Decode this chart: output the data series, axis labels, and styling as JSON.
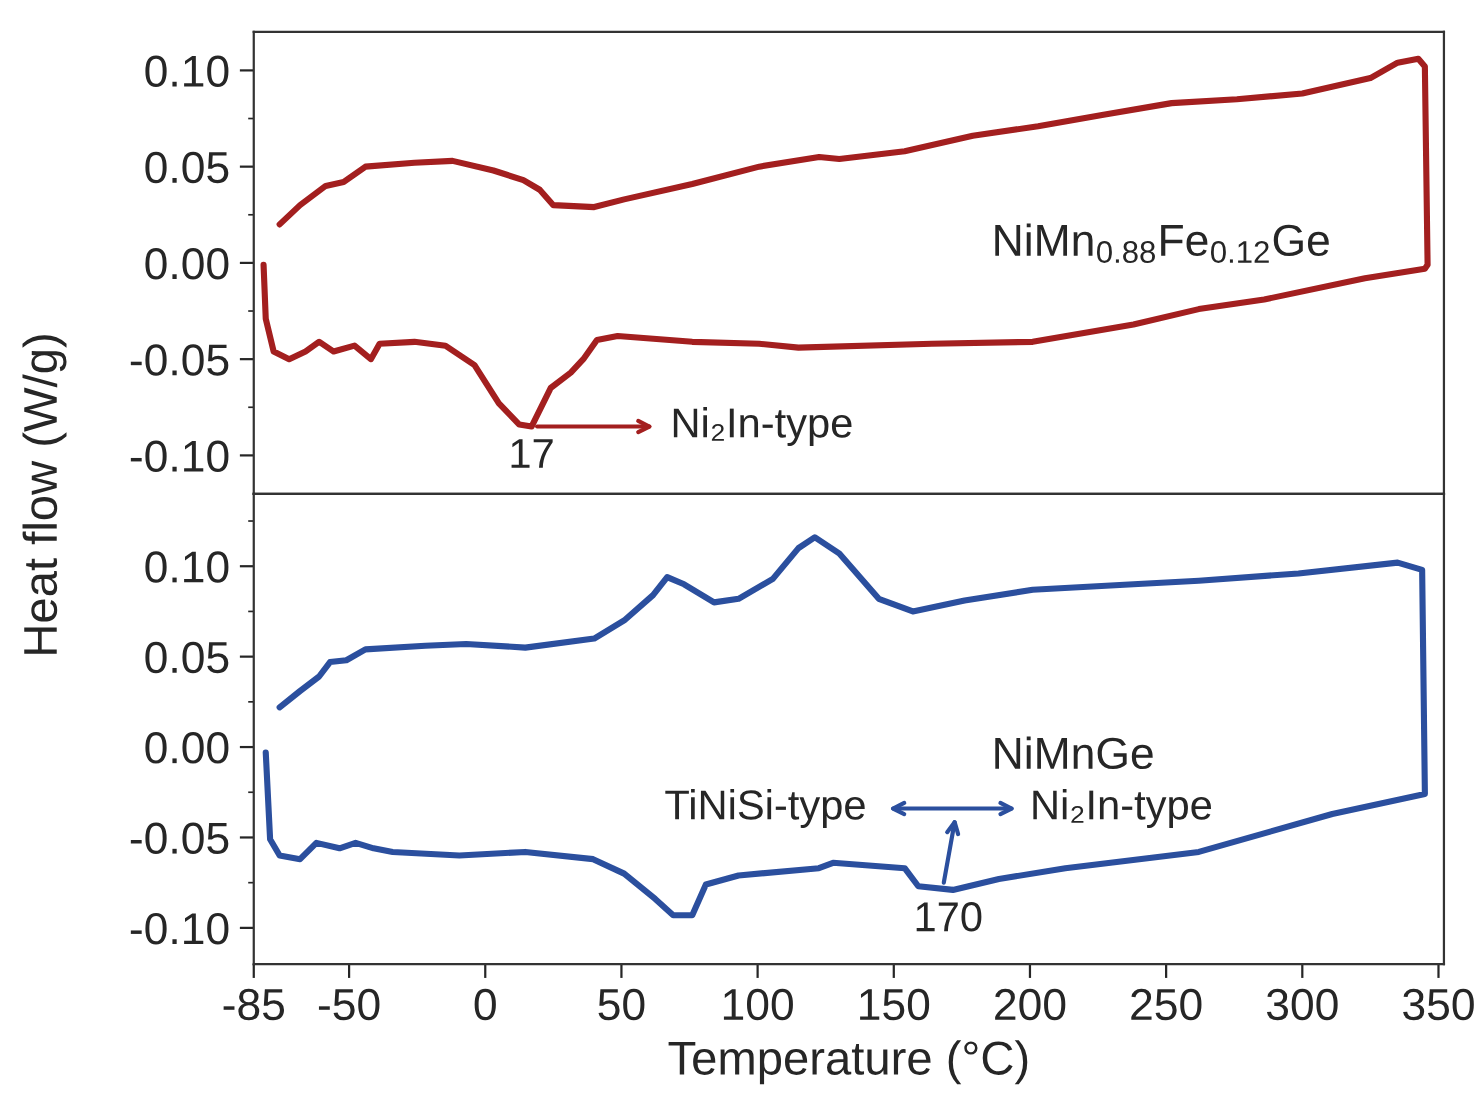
{
  "chart_data": [
    {
      "type": "line",
      "ylabel": "Heat flow (W/g)",
      "xlim": [
        -85,
        352
      ],
      "ylim": [
        -0.12,
        0.12
      ],
      "yticks": [
        {
          "value": -0.1,
          "label": "-0.10"
        },
        {
          "value": -0.05,
          "label": "-0.05"
        },
        {
          "value": 0,
          "label": "0.00"
        },
        {
          "value": 0.05,
          "label": "0.05"
        },
        {
          "value": 0.1,
          "label": "0.10"
        }
      ],
      "tick_labels": "y",
      "grid": false,
      "legend": false,
      "series": [
        {
          "name": "NiMn$_{0.88}$Fe$_{0.12}$Ge",
          "color": "#a31f1f",
          "x": [
            -75.5,
            -68,
            -58.6,
            -52,
            -44,
            -26,
            -12,
            3,
            14,
            20,
            25,
            40,
            51,
            76,
            100.6,
            122.6,
            130,
            154,
            179,
            203,
            227,
            252,
            276,
            300,
            325,
            335,
            342.6,
            345,
            346,
            345,
            323,
            286,
            262,
            238,
            201,
            164,
            115,
            100.6,
            76,
            48.6,
            41,
            36,
            31.4,
            24,
            17,
            12.5,
            5,
            -4,
            -14.6,
            -26,
            -38.8,
            -42,
            -48,
            -55.7,
            -61,
            -66,
            -72,
            -77.7,
            -80.6,
            -81.4
          ],
          "values": [
            0.02,
            0.03,
            0.04,
            0.042,
            0.05,
            0.052,
            0.053,
            0.048,
            0.043,
            0.038,
            0.03,
            0.029,
            0.033,
            0.041,
            0.05,
            0.055,
            0.054,
            0.058,
            0.066,
            0.071,
            0.077,
            0.083,
            0.085,
            0.088,
            0.096,
            0.104,
            0.106,
            0.102,
            -0.001,
            -0.003,
            -0.008,
            -0.019,
            -0.024,
            -0.032,
            -0.041,
            -0.042,
            -0.044,
            -0.042,
            -0.041,
            -0.038,
            -0.04,
            -0.05,
            -0.057,
            -0.065,
            -0.085,
            -0.084,
            -0.073,
            -0.053,
            -0.043,
            -0.041,
            -0.042,
            -0.05,
            -0.043,
            -0.046,
            -0.041,
            -0.046,
            -0.05,
            -0.046,
            -0.029,
            -0.001
          ]
        }
      ],
      "annotations": [
        {
          "text": "17",
          "x": 17,
          "y": -0.085
        },
        "Ni₂In-type"
      ]
    },
    {
      "type": "line",
      "xlabel": "Temperature (°C)",
      "xlim": [
        -85,
        352
      ],
      "ylim": [
        -0.12,
        0.14
      ],
      "xticks": [
        -85,
        -50,
        0,
        50,
        100,
        150,
        200,
        250,
        300,
        350
      ],
      "yticks": [
        {
          "value": -0.1,
          "label": "-0.10"
        },
        {
          "value": -0.05,
          "label": "-0.05"
        },
        {
          "value": 0,
          "label": "0.00"
        },
        {
          "value": 0.05,
          "label": "0.05"
        },
        {
          "value": 0.1,
          "label": "0.10"
        }
      ],
      "grid": false,
      "legend": false,
      "series": [
        {
          "name": "NiMnGe",
          "color": "#2b4f9e",
          "x": [
            -75.5,
            -68,
            -61,
            -57,
            -51,
            -44,
            -22,
            -7,
            14.7,
            40,
            51,
            61.6,
            66.8,
            73,
            84,
            93,
            105.6,
            115,
            121,
            130,
            144.5,
            157,
            176,
            201,
            238,
            262,
            298.6,
            335,
            344,
            345,
            345,
            311,
            262,
            213,
            188.6,
            171.7,
            159,
            154,
            127.7,
            122.5,
            93,
            81,
            76,
            69,
            62.4,
            51,
            39.6,
            14.7,
            -9.5,
            -34,
            -41,
            -47.6,
            -53.5,
            -62,
            -68,
            -75.5,
            -79,
            -80.6
          ],
          "values": [
            0.022,
            0.031,
            0.039,
            0.047,
            0.048,
            0.054,
            0.056,
            0.057,
            0.055,
            0.06,
            0.07,
            0.084,
            0.094,
            0.09,
            0.08,
            0.082,
            0.093,
            0.11,
            0.116,
            0.107,
            0.082,
            0.075,
            0.081,
            0.087,
            0.09,
            0.092,
            0.096,
            0.102,
            0.098,
            -0.025,
            -0.026,
            -0.037,
            -0.058,
            -0.067,
            -0.073,
            -0.079,
            -0.077,
            -0.067,
            -0.064,
            -0.067,
            -0.071,
            -0.076,
            -0.093,
            -0.093,
            -0.084,
            -0.07,
            -0.062,
            -0.058,
            -0.06,
            -0.058,
            -0.056,
            -0.053,
            -0.056,
            -0.053,
            -0.062,
            -0.06,
            -0.051,
            -0.003
          ]
        }
      ],
      "annotations": [
        {
          "text": "170",
          "x": 170,
          "y": -0.079
        },
        "TiNiSi-type",
        "Ni₂In-type"
      ]
    }
  ]
}
